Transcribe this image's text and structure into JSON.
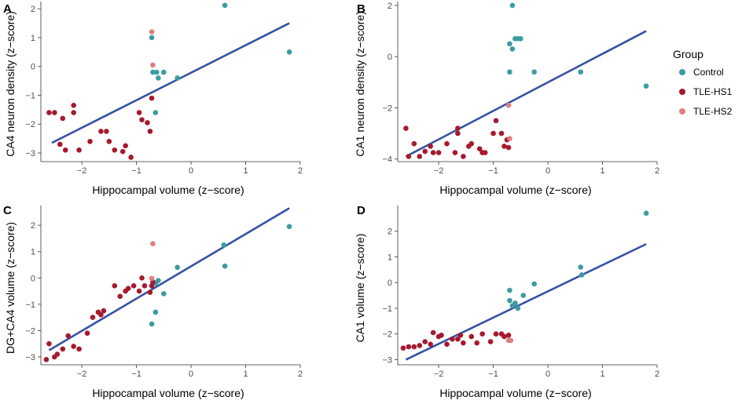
{
  "legend": {
    "title": "Group",
    "entries": [
      {
        "name": "Control",
        "color": "#3d9ba0"
      },
      {
        "name": "TLE-HS1",
        "color": "#a6192e"
      },
      {
        "name": "TLE-HS2",
        "color": "#dc7f81"
      }
    ]
  },
  "fit_line_color": "#3552a3",
  "chart_data": [
    {
      "type": "scatter",
      "panel": "A",
      "xlabel": "Hippocampal volume (z−score)",
      "ylabel": "CA4 neuron density (z−score)",
      "xlim": [
        -2.75,
        2.0
      ],
      "ylim": [
        -3.3,
        2.25
      ],
      "xticks": [
        -2,
        -1,
        0,
        1,
        2
      ],
      "yticks": [
        -3,
        -2,
        -1,
        0,
        1,
        2
      ],
      "fit": {
        "x": [
          -2.55,
          1.8
        ],
        "y": [
          -2.65,
          1.5
        ]
      },
      "series": [
        {
          "name": "Control",
          "points": [
            [
              0.62,
              2.12
            ],
            [
              1.8,
              0.5
            ],
            [
              -0.72,
              1.0
            ],
            [
              -0.7,
              -0.2
            ],
            [
              -0.63,
              -0.2
            ],
            [
              -0.6,
              -0.4
            ],
            [
              -0.5,
              -0.2
            ],
            [
              -0.25,
              -0.4
            ],
            [
              -0.65,
              -1.6
            ]
          ]
        },
        {
          "name": "TLE-HS1",
          "points": [
            [
              -2.6,
              -1.6
            ],
            [
              -2.5,
              -1.6
            ],
            [
              -2.4,
              -2.7
            ],
            [
              -2.35,
              -1.8
            ],
            [
              -2.3,
              -2.9
            ],
            [
              -2.15,
              -1.35
            ],
            [
              -2.15,
              -1.6
            ],
            [
              -2.05,
              -2.9
            ],
            [
              -1.85,
              -2.6
            ],
            [
              -1.65,
              -2.25
            ],
            [
              -1.55,
              -2.25
            ],
            [
              -1.5,
              -2.6
            ],
            [
              -1.4,
              -2.9
            ],
            [
              -1.25,
              -2.95
            ],
            [
              -1.2,
              -2.75
            ],
            [
              -1.1,
              -3.15
            ],
            [
              -0.95,
              -1.6
            ],
            [
              -0.9,
              -1.85
            ],
            [
              -0.8,
              -1.95
            ],
            [
              -0.75,
              -2.25
            ],
            [
              -0.72,
              -1.1
            ]
          ]
        },
        {
          "name": "TLE-HS2",
          "points": [
            [
              -0.72,
              1.2
            ],
            [
              -0.7,
              0.05
            ]
          ]
        }
      ]
    },
    {
      "type": "scatter",
      "panel": "B",
      "xlabel": "Hippocampal volume (z−score)",
      "ylabel": "CA1 neuron density (z−score)",
      "xlim": [
        -2.75,
        2.0
      ],
      "ylim": [
        -4.1,
        2.15
      ],
      "xticks": [
        -2,
        -1,
        0,
        1,
        2
      ],
      "yticks": [
        -4,
        -2,
        0,
        2
      ],
      "fit": {
        "x": [
          -2.6,
          1.8
        ],
        "y": [
          -3.9,
          1.0
        ]
      },
      "series": [
        {
          "name": "Control",
          "points": [
            [
              -0.65,
              2.0
            ],
            [
              -0.7,
              0.5
            ],
            [
              -0.65,
              0.3
            ],
            [
              -0.6,
              0.7
            ],
            [
              -0.55,
              0.7
            ],
            [
              -0.5,
              0.7
            ],
            [
              -0.7,
              -0.6
            ],
            [
              -0.25,
              -0.6
            ],
            [
              0.6,
              -0.6
            ],
            [
              1.8,
              -1.15
            ]
          ]
        },
        {
          "name": "TLE-HS1",
          "points": [
            [
              -2.6,
              -2.8
            ],
            [
              -2.55,
              -3.9
            ],
            [
              -2.45,
              -3.4
            ],
            [
              -2.35,
              -3.9
            ],
            [
              -2.25,
              -3.7
            ],
            [
              -2.15,
              -3.5
            ],
            [
              -2.1,
              -3.75
            ],
            [
              -2.0,
              -3.75
            ],
            [
              -1.85,
              -3.4
            ],
            [
              -1.7,
              -3.75
            ],
            [
              -1.65,
              -2.8
            ],
            [
              -1.65,
              -3.0
            ],
            [
              -1.55,
              -3.9
            ],
            [
              -1.45,
              -3.5
            ],
            [
              -1.4,
              -3.4
            ],
            [
              -1.25,
              -3.6
            ],
            [
              -1.2,
              -3.75
            ],
            [
              -1.15,
              -3.75
            ],
            [
              -1.0,
              -3.0
            ],
            [
              -0.95,
              -2.5
            ],
            [
              -0.85,
              -3.0
            ],
            [
              -0.8,
              -3.5
            ],
            [
              -0.75,
              -3.25
            ],
            [
              -0.72,
              -3.55
            ]
          ]
        },
        {
          "name": "TLE-HS2",
          "points": [
            [
              -0.72,
              -1.9
            ],
            [
              -0.7,
              -3.2
            ]
          ]
        }
      ]
    },
    {
      "type": "scatter",
      "panel": "C",
      "xlabel": "Hippocampal volume (z−score)",
      "ylabel": "DG+CA4 volume (z−score)",
      "xlim": [
        -2.75,
        2.0
      ],
      "ylim": [
        -3.3,
        2.75
      ],
      "xticks": [
        -2,
        -1,
        0,
        1,
        2
      ],
      "yticks": [
        -3,
        -2,
        -1,
        0,
        1,
        2
      ],
      "fit": {
        "x": [
          -2.6,
          1.8
        ],
        "y": [
          -2.75,
          2.65
        ]
      },
      "series": [
        {
          "name": "Control",
          "points": [
            [
              1.8,
              1.95
            ],
            [
              0.6,
              1.25
            ],
            [
              0.62,
              0.45
            ],
            [
              -0.25,
              0.4
            ],
            [
              -0.6,
              -0.1
            ],
            [
              -0.65,
              -0.2
            ],
            [
              -0.5,
              -0.6
            ],
            [
              -0.65,
              -1.3
            ],
            [
              -0.72,
              -1.75
            ]
          ]
        },
        {
          "name": "TLE-HS1",
          "points": [
            [
              -2.65,
              -3.1
            ],
            [
              -2.6,
              -2.5
            ],
            [
              -2.5,
              -3.0
            ],
            [
              -2.45,
              -2.9
            ],
            [
              -2.35,
              -2.7
            ],
            [
              -2.25,
              -2.2
            ],
            [
              -2.15,
              -2.6
            ],
            [
              -2.05,
              -2.7
            ],
            [
              -1.9,
              -2.1
            ],
            [
              -1.8,
              -1.5
            ],
            [
              -1.7,
              -1.3
            ],
            [
              -1.65,
              -1.4
            ],
            [
              -1.6,
              -1.25
            ],
            [
              -1.4,
              -0.3
            ],
            [
              -1.3,
              -0.7
            ],
            [
              -1.2,
              -0.5
            ],
            [
              -1.15,
              -0.4
            ],
            [
              -1.05,
              -0.3
            ],
            [
              -0.95,
              -0.5
            ],
            [
              -0.9,
              0.0
            ],
            [
              -0.85,
              -0.3
            ],
            [
              -0.75,
              -0.55
            ],
            [
              -0.72,
              -0.3
            ],
            [
              -0.7,
              -0.15
            ]
          ]
        },
        {
          "name": "TLE-HS2",
          "points": [
            [
              -0.7,
              1.3
            ],
            [
              -0.72,
              -0.02
            ]
          ]
        }
      ]
    },
    {
      "type": "scatter",
      "panel": "D",
      "xlabel": "Hippocampal volume (z−score)",
      "ylabel": "CA1 volume (z−score)",
      "xlim": [
        -2.75,
        2.0
      ],
      "ylim": [
        -3.2,
        3.0
      ],
      "xticks": [
        -2,
        -1,
        0,
        1,
        2
      ],
      "yticks": [
        -3,
        -2,
        -1,
        0,
        1,
        2
      ],
      "fit": {
        "x": [
          -2.6,
          1.8
        ],
        "y": [
          -3.0,
          1.5
        ]
      },
      "series": [
        {
          "name": "Control",
          "points": [
            [
              1.8,
              2.7
            ],
            [
              0.6,
              0.6
            ],
            [
              0.62,
              0.3
            ],
            [
              -0.25,
              -0.05
            ],
            [
              -0.45,
              -0.5
            ],
            [
              -0.7,
              -0.3
            ],
            [
              -0.7,
              -0.7
            ],
            [
              -0.6,
              -0.8
            ],
            [
              -0.65,
              -0.9
            ],
            [
              -0.55,
              -1.0
            ]
          ]
        },
        {
          "name": "TLE-HS1",
          "points": [
            [
              -2.65,
              -2.55
            ],
            [
              -2.55,
              -2.5
            ],
            [
              -2.45,
              -2.5
            ],
            [
              -2.35,
              -2.45
            ],
            [
              -2.25,
              -2.3
            ],
            [
              -2.15,
              -2.4
            ],
            [
              -2.1,
              -1.95
            ],
            [
              -2.0,
              -2.1
            ],
            [
              -1.95,
              -2.05
            ],
            [
              -1.85,
              -2.4
            ],
            [
              -1.75,
              -2.2
            ],
            [
              -1.65,
              -2.2
            ],
            [
              -1.6,
              -2.05
            ],
            [
              -1.55,
              -2.35
            ],
            [
              -1.4,
              -2.1
            ],
            [
              -1.3,
              -2.35
            ],
            [
              -1.2,
              -2.0
            ],
            [
              -1.05,
              -2.3
            ],
            [
              -0.95,
              -2.0
            ],
            [
              -0.85,
              -2.0
            ],
            [
              -0.8,
              -2.1
            ],
            [
              -0.72,
              -2.05
            ]
          ]
        },
        {
          "name": "TLE-HS2",
          "points": [
            [
              -0.72,
              -2.25
            ],
            [
              -0.68,
              -2.25
            ]
          ]
        }
      ]
    }
  ]
}
